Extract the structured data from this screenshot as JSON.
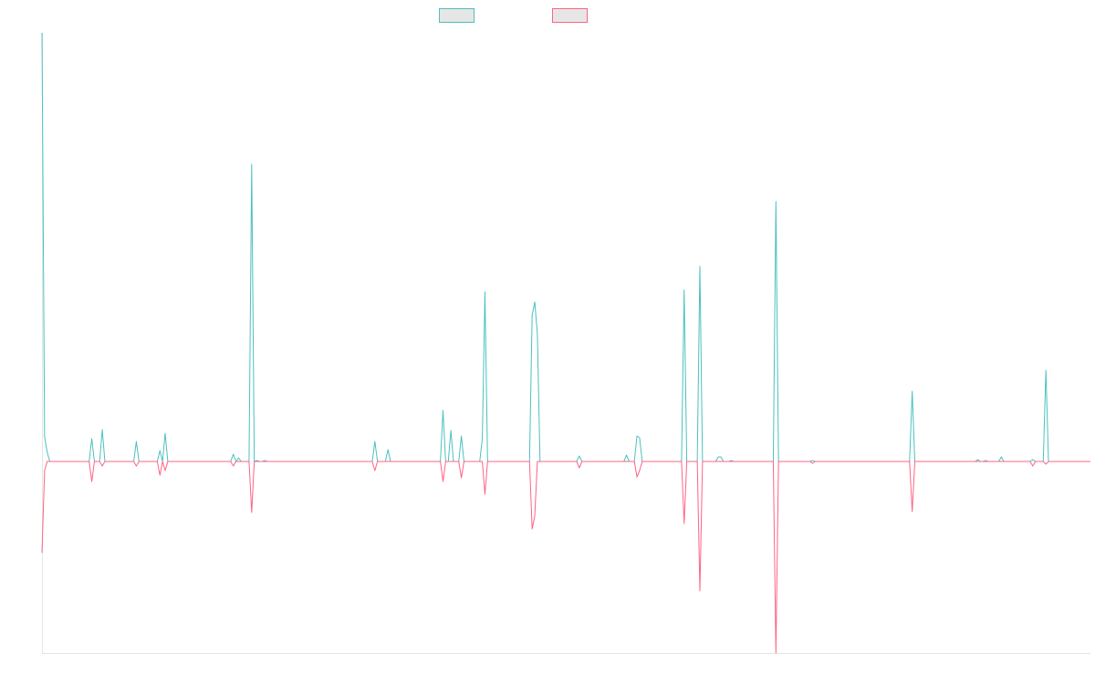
{
  "chart_data": {
    "type": "line",
    "title": "",
    "xlabel": "",
    "ylabel": "",
    "x": [
      0,
      1,
      2,
      3,
      4,
      5,
      6,
      7,
      8,
      9,
      10,
      11,
      12,
      13,
      14,
      15,
      16,
      17,
      18,
      19,
      20,
      21,
      22,
      23,
      24,
      25,
      26,
      27,
      28,
      29,
      30,
      31,
      32,
      33,
      34,
      35,
      36,
      37,
      38,
      39,
      40,
      41,
      42,
      43,
      44,
      45,
      46,
      47,
      48,
      49,
      50,
      51,
      52,
      53,
      54,
      55,
      56,
      57,
      58,
      59,
      60,
      61,
      62,
      63,
      64,
      65,
      66,
      67,
      68,
      69,
      70,
      71,
      72,
      73,
      74,
      75,
      76,
      77,
      78,
      79,
      80,
      81,
      82,
      83,
      84,
      85,
      86,
      87,
      88,
      89,
      90,
      91,
      92,
      93,
      94,
      95,
      96,
      97,
      98,
      99,
      100,
      101,
      102,
      103,
      104,
      105,
      106,
      107,
      108,
      109,
      110,
      111,
      112,
      113,
      114,
      115,
      116,
      117,
      118,
      119,
      120,
      121,
      122,
      123,
      124,
      125,
      126,
      127,
      128,
      129,
      130,
      131,
      132,
      133,
      134,
      135,
      136,
      137,
      138,
      139,
      140,
      141,
      142,
      143,
      144,
      145,
      146,
      147,
      148,
      149,
      150,
      151,
      152,
      153,
      154,
      155,
      156,
      157,
      158,
      159,
      160,
      161,
      162,
      163,
      164,
      165,
      166,
      167,
      168,
      169,
      170,
      171,
      172,
      173,
      174,
      175,
      176,
      177,
      178,
      179,
      180,
      181,
      182,
      183,
      184,
      185,
      186,
      187,
      188,
      189,
      190,
      191,
      192,
      193,
      194,
      195,
      196,
      197,
      198,
      199,
      200,
      201,
      202,
      203,
      204,
      205,
      206,
      207,
      208,
      209,
      210,
      211,
      212,
      213,
      214,
      215,
      216,
      217,
      218,
      219,
      220,
      221,
      222,
      223,
      224,
      225,
      226,
      227,
      228,
      229,
      230,
      231,
      232,
      233,
      234,
      235,
      236,
      237,
      238,
      239,
      240,
      241,
      242,
      243,
      244,
      245,
      246,
      247,
      248,
      249,
      250,
      251,
      252,
      253,
      254,
      255,
      256,
      257,
      258,
      259,
      260,
      261,
      262,
      263,
      264,
      265,
      266,
      267,
      268,
      269,
      270,
      271,
      272,
      273,
      274,
      275,
      276,
      277,
      278,
      279,
      280,
      281,
      282,
      283,
      284,
      285,
      286,
      287,
      288,
      289,
      290,
      291,
      292,
      293,
      294,
      295,
      296,
      297,
      298,
      299,
      300,
      301,
      302,
      303,
      304,
      305,
      306,
      307,
      308,
      309,
      310,
      311,
      312,
      313,
      314,
      315,
      316,
      317,
      318,
      319,
      320,
      321,
      322,
      323,
      324,
      325,
      326,
      327,
      328,
      329,
      330,
      331,
      332,
      333,
      334,
      335,
      336,
      337,
      338,
      339,
      340,
      341,
      342,
      343,
      344,
      345,
      346,
      347,
      348,
      349,
      350,
      351,
      352,
      353,
      354,
      355,
      356,
      357,
      358,
      359,
      360,
      361,
      362,
      363,
      364,
      365,
      366,
      367,
      368,
      369,
      370,
      371,
      372,
      373,
      374,
      375,
      376,
      377,
      378,
      379,
      380,
      381,
      382,
      383,
      384,
      385,
      386,
      387,
      388,
      389,
      390,
      391,
      392,
      393,
      394,
      395,
      396,
      397,
      398,
      399,
      400
    ],
    "xlim": [
      0,
      400
    ],
    "ylim": [
      -210,
      470
    ],
    "grid": false,
    "legend_position": "top-center",
    "colors": {
      "series1": "#4bc0c0",
      "series2": "#ff6384",
      "legend_fill": "#e6e6e6",
      "axis": "#e5e5e5"
    },
    "series": [
      {
        "color": "#4bc0c0",
        "baseline": 0,
        "spikes": [
          [
            0,
            470
          ],
          [
            1,
            27
          ],
          [
            2,
            10
          ],
          [
            19,
            25
          ],
          [
            23,
            35
          ],
          [
            36,
            22
          ],
          [
            45,
            12
          ],
          [
            47,
            31
          ],
          [
            73,
            8
          ],
          [
            75,
            4
          ],
          [
            80,
            326
          ],
          [
            82,
            1
          ],
          [
            85,
            1
          ],
          [
            127,
            22
          ],
          [
            132,
            13
          ],
          [
            153,
            56
          ],
          [
            156,
            34
          ],
          [
            160,
            28
          ],
          [
            168,
            25
          ],
          [
            169,
            186
          ],
          [
            187,
            160
          ],
          [
            188,
            175
          ],
          [
            189,
            140
          ],
          [
            205,
            6
          ],
          [
            223,
            7
          ],
          [
            227,
            28
          ],
          [
            228,
            26
          ],
          [
            245,
            188
          ],
          [
            251,
            214
          ],
          [
            258,
            5
          ],
          [
            259,
            5
          ],
          [
            263,
            1
          ],
          [
            280,
            285
          ],
          [
            294,
            1
          ],
          [
            332,
            77
          ],
          [
            357,
            2
          ],
          [
            360,
            1
          ],
          [
            366,
            5
          ],
          [
            378,
            2
          ],
          [
            383,
            100
          ]
        ]
      },
      {
        "color": "#ff6384",
        "baseline": 0,
        "spikes": [
          [
            0,
            -100
          ],
          [
            1,
            -10
          ],
          [
            19,
            -22
          ],
          [
            23,
            -5
          ],
          [
            36,
            -5
          ],
          [
            45,
            -15
          ],
          [
            47,
            -10
          ],
          [
            73,
            -5
          ],
          [
            80,
            -56
          ],
          [
            127,
            -10
          ],
          [
            153,
            -22
          ],
          [
            160,
            -18
          ],
          [
            169,
            -36
          ],
          [
            187,
            -74
          ],
          [
            188,
            -60
          ],
          [
            205,
            -7
          ],
          [
            227,
            -17
          ],
          [
            228,
            -10
          ],
          [
            245,
            -68
          ],
          [
            251,
            -142
          ],
          [
            280,
            -210
          ],
          [
            294,
            -2
          ],
          [
            332,
            -55
          ],
          [
            378,
            -5
          ],
          [
            383,
            -3
          ]
        ]
      }
    ]
  }
}
